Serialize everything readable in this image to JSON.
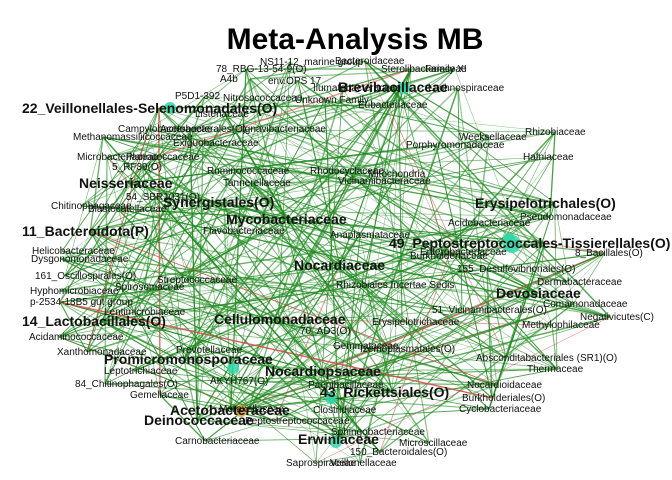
{
  "title": "Meta-Analysis MB",
  "colors": {
    "background": "#ffffff",
    "edge": "#1f8a1f",
    "edge_negative": "#d84a4a",
    "node_teal": "#2fd6a8",
    "node_orange": "#e8a23a",
    "node_small": "#3fcf9f"
  },
  "hub_nodes": [
    "Brevibacillaceae",
    "22_Veillonellales-Selenomonadales(O)",
    "Neisseriaceae",
    "Synergistales(O)",
    "Mycobacteriaceae",
    "11_Bacteroidota(P)",
    "Nocardiaceae",
    "49_Peptostreptococcales-Tissierellales(O)",
    "Erysipelotrichales(O)",
    "Devosiaceae",
    "14_Lactobacillales(O)",
    "Cellulomonadaceae",
    "Promicromonosporaceae",
    "Nocardiopsaceae",
    "43_Rickettsiales(O)",
    "Acetobacteraceae",
    "Deinococcaceae",
    "Erwiniaceae"
  ],
  "minor_nodes": [
    "NS11-12_marine group",
    "Bacteroidaceae",
    "78_RBG-13-54-9(O)",
    "env.OPS 17",
    "Sterolibacteriaceae",
    "Family XI",
    "A4b",
    "P5D1-392",
    "Nitrosococcaceae",
    "Unknown Family",
    "Lachnospiraceae",
    "Ilumatobacteraceae",
    "Eubacteriaceae",
    "Listeriaceae",
    "Campylobacteraceae",
    "Acetobacterales(O)",
    "Ignavibacteriaceae",
    "Methanomassiliicoccaceae",
    "Exiguobacteraceae",
    "Weeksellaceae",
    "Rhizobiaceae",
    "Porphyromonadaceae",
    "Microbacteriaceae",
    "Planococcaceae",
    "Hafniaceae",
    "5_RF39(O)",
    "Ruminococcaceae",
    "Rhodocyclaceae",
    "Mitochondria",
    "Vicinamibacteraceae",
    "Tannerellaceae",
    "Chitinophagaceae",
    "Blastocatellaceae",
    "54_SBR1031(O)",
    "Acidobacteriaceae",
    "Helicobacteraceae",
    "Dysgonomonadaceae",
    "Flavobacteriaceae",
    "Pseudomonadaceae",
    "161_Oscillospirales(O)",
    "Anaplasmataceae",
    "Burkholderiaceae",
    "Hyphomicrobiaceae",
    "Spirosomaceae",
    "p-2534-18B5 gut group",
    "Lentimicrobiaceae",
    "Rhizobiales Incertae Sedis",
    "155_Desulfovibrionales(O)",
    "8_Bacillales(O)",
    "Dermabacteraceae",
    "Comamonadaceae",
    "Acidaminococcaceae",
    "Xanthomonadaceae",
    "51_Vicinamibacterales(O)",
    "Methylophilaceae",
    "70_AD3(O)",
    "Gemmataceae",
    "Izemoplasmatales(O)",
    "Paenibacillaceae",
    "Erysipelotrichaceae",
    "Leptotrichiaceae",
    "AKYH767(O)",
    "Absconditabacteriales (SR1)(O)",
    "Thermaceae",
    "84_Chitinophagales(O)",
    "Gemellaceae",
    "Nocardioidaceae",
    "Burkholderiales(O)",
    "Clostridiaceae",
    "Cyclobacteriaceae",
    "Carnobacteriaceae",
    "Moraxellaceae",
    "Peptostreptococcaceae",
    "Sphingobacteriaceae",
    "Saprospiraceae",
    "150_Bacteroidales(O)",
    "Microscillaceae",
    "Veillonellaceae",
    "Prevotellaceae",
    "Enterobacteriaceae",
    "Streptococcaceae",
    "Negativicutes(C)"
  ]
}
